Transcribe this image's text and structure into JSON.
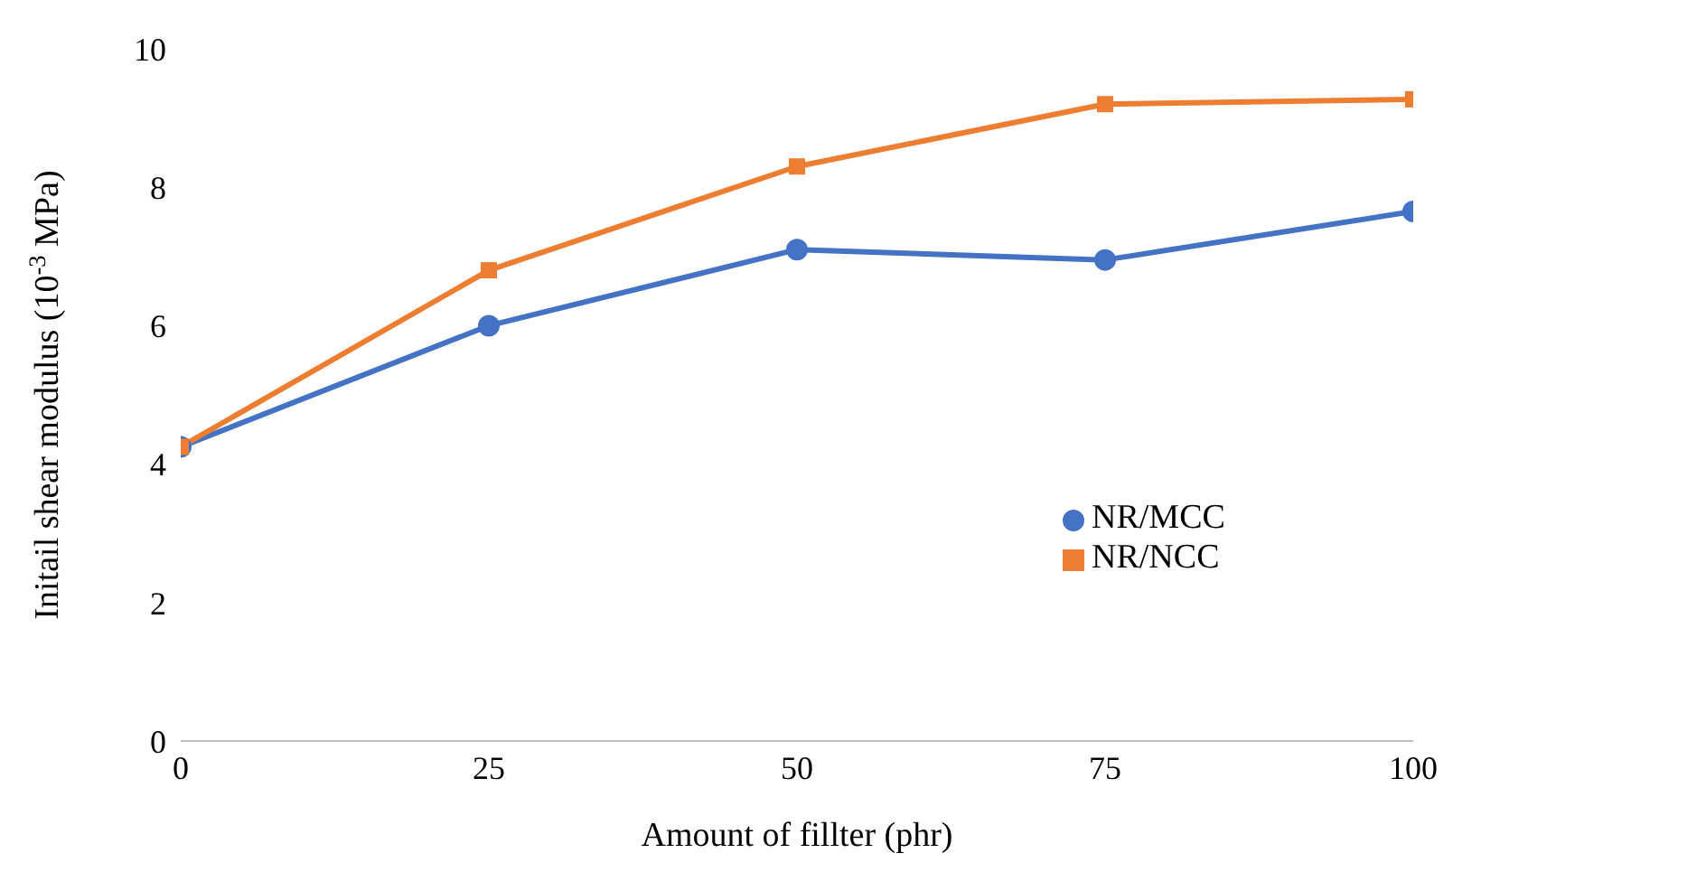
{
  "chart_data": {
    "type": "line",
    "xlabel": "Amount of fillter (phr)",
    "ylabel": "Initail shear modulus (10$^{-3}$ MPa)",
    "x": [
      0,
      25,
      50,
      75,
      100
    ],
    "series": [
      {
        "name": "NR/MCC",
        "color": "#4472c4",
        "marker": "circle",
        "values": [
          4.25,
          6.0,
          7.1,
          6.95,
          7.65
        ]
      },
      {
        "name": "NR/NCC",
        "color": "#ed7d31",
        "marker": "square",
        "values": [
          4.25,
          6.8,
          8.3,
          9.2,
          9.27
        ]
      }
    ],
    "xlim": [
      0,
      100
    ],
    "xticks": [
      0,
      25,
      50,
      75,
      100
    ],
    "ylim": [
      0,
      10
    ],
    "yticks": [
      0,
      2,
      4,
      6,
      8,
      10
    ],
    "grid": false,
    "legend": "right"
  }
}
